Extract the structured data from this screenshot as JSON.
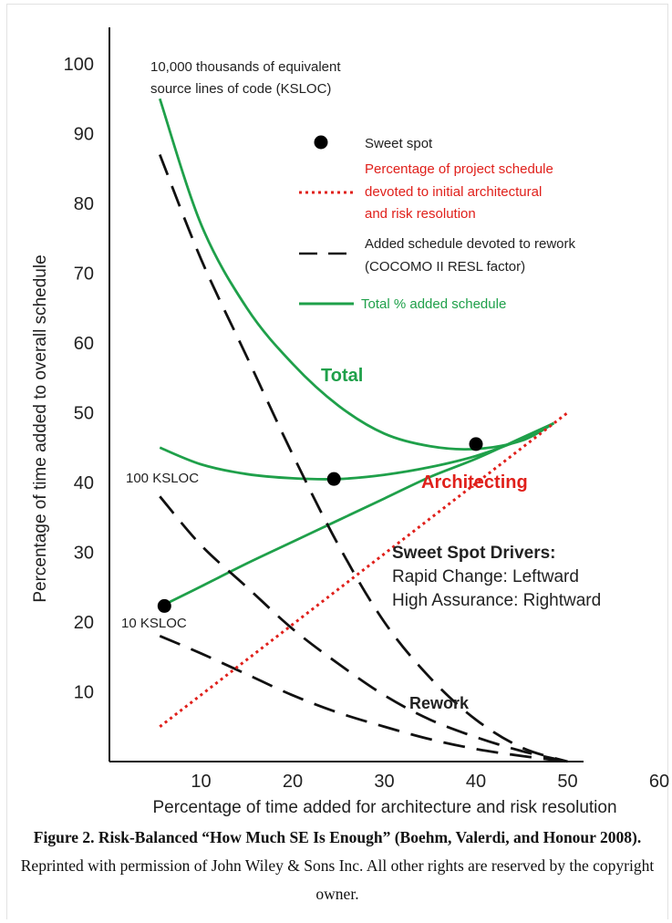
{
  "chart_data": {
    "type": "line",
    "xlabel": "Percentage of time added for architecture and risk resolution",
    "ylabel": "Percentage of time added to overall schedule",
    "xlim": [
      0,
      68
    ],
    "ylim": [
      0,
      103
    ],
    "x_ticks": [
      10,
      20,
      30,
      40,
      50,
      60
    ],
    "y_ticks": [
      10,
      20,
      30,
      40,
      50,
      60,
      70,
      80,
      90,
      100
    ],
    "grid": false,
    "series": [
      {
        "name": "Total % added schedule",
        "group": "10,000 KSLOC",
        "style": "solid",
        "color": "#1fa04a",
        "x": [
          5.5,
          10,
          15,
          20,
          25,
          30,
          35,
          40,
          45,
          48.5
        ],
        "y": [
          95,
          77,
          65,
          57,
          51,
          47,
          45.2,
          44.8,
          46,
          48.5
        ]
      },
      {
        "name": "Total % added schedule",
        "group": "100 KSLOC",
        "style": "solid",
        "color": "#1fa04a",
        "x": [
          5.5,
          10,
          15,
          20,
          25,
          30,
          35,
          40,
          45,
          48.5
        ],
        "y": [
          45,
          42.6,
          41.2,
          40.6,
          40.5,
          41.1,
          42.2,
          43.8,
          46.2,
          48.5
        ]
      },
      {
        "name": "Total % added schedule",
        "group": "10 KSLOC",
        "style": "solid",
        "color": "#1fa04a",
        "x": [
          6,
          10,
          15,
          20,
          25,
          30,
          35,
          40,
          45,
          48.5
        ],
        "y": [
          22.5,
          25.1,
          28.4,
          31.5,
          34.6,
          37.7,
          40.8,
          43.4,
          46.4,
          48.5
        ]
      },
      {
        "name": "Added schedule devoted to rework (COCOMO II RESL factor)",
        "group": "10,000 KSLOC",
        "style": "dashed",
        "color": "#111111",
        "x": [
          5.5,
          10,
          15,
          20,
          25,
          30,
          35,
          40,
          45,
          50
        ],
        "y": [
          87,
          72,
          58,
          44,
          31,
          20,
          12,
          6,
          2,
          0
        ]
      },
      {
        "name": "Added schedule devoted to rework (COCOMO II RESL factor)",
        "group": "100 KSLOC",
        "style": "dashed",
        "color": "#111111",
        "x": [
          5.5,
          10,
          15,
          20,
          25,
          30,
          35,
          40,
          45,
          50
        ],
        "y": [
          38,
          31,
          25,
          19,
          14,
          9.5,
          6,
          3.5,
          1.5,
          0
        ]
      },
      {
        "name": "Added schedule devoted to rework (COCOMO II RESL factor)",
        "group": "10 KSLOC",
        "style": "dashed",
        "color": "#111111",
        "x": [
          5.5,
          10,
          15,
          20,
          25,
          30,
          35,
          40,
          45,
          50
        ],
        "y": [
          18,
          15.5,
          12.5,
          9.5,
          7,
          5,
          3.2,
          1.8,
          0.8,
          0
        ]
      },
      {
        "name": "Percentage of project schedule devoted to initial architectural and risk resolution",
        "style": "dotted",
        "color": "#e0201b",
        "x": [
          5.5,
          50
        ],
        "y": [
          5,
          50
        ]
      }
    ],
    "sweet_spots": [
      {
        "x": 40,
        "y": 45.5
      },
      {
        "x": 24.5,
        "y": 40.5
      },
      {
        "x": 6,
        "y": 22.3
      }
    ],
    "annotations": {
      "ksloc_10000": "10,000 thousands of equivalent",
      "ksloc_10000_line2": "source lines of code (KSLOC)",
      "ksloc_100": "100 KSLOC",
      "ksloc_10": "10 KSLOC",
      "total": "Total",
      "architecting": "Architecting",
      "rework": "Rework",
      "drivers_title": "Sweet Spot Drivers:",
      "drivers_line1": "Rapid Change: Leftward",
      "drivers_line2": "High Assurance: Rightward"
    },
    "legend": {
      "position": "top-right",
      "sweet_spot": "Sweet spot",
      "architecture_line1": "Percentage of project schedule",
      "architecture_line2": "devoted to initial architectural",
      "architecture_line3": "and risk resolution",
      "rework_line1": "Added schedule devoted to rework",
      "rework_line2": "(COCOMO II RESL factor)",
      "total": "Total % added schedule"
    },
    "colors": {
      "green": "#1fa04a",
      "red": "#e0201b",
      "black": "#111111"
    }
  },
  "caption": {
    "bold": "Figure 2. Risk-Balanced “How Much SE Is Enough” (Boehm, Valerdi, and Honour 2008).",
    "text": " Reprinted with permission of John Wiley & Sons Inc. All other rights are reserved by the copyright owner."
  }
}
